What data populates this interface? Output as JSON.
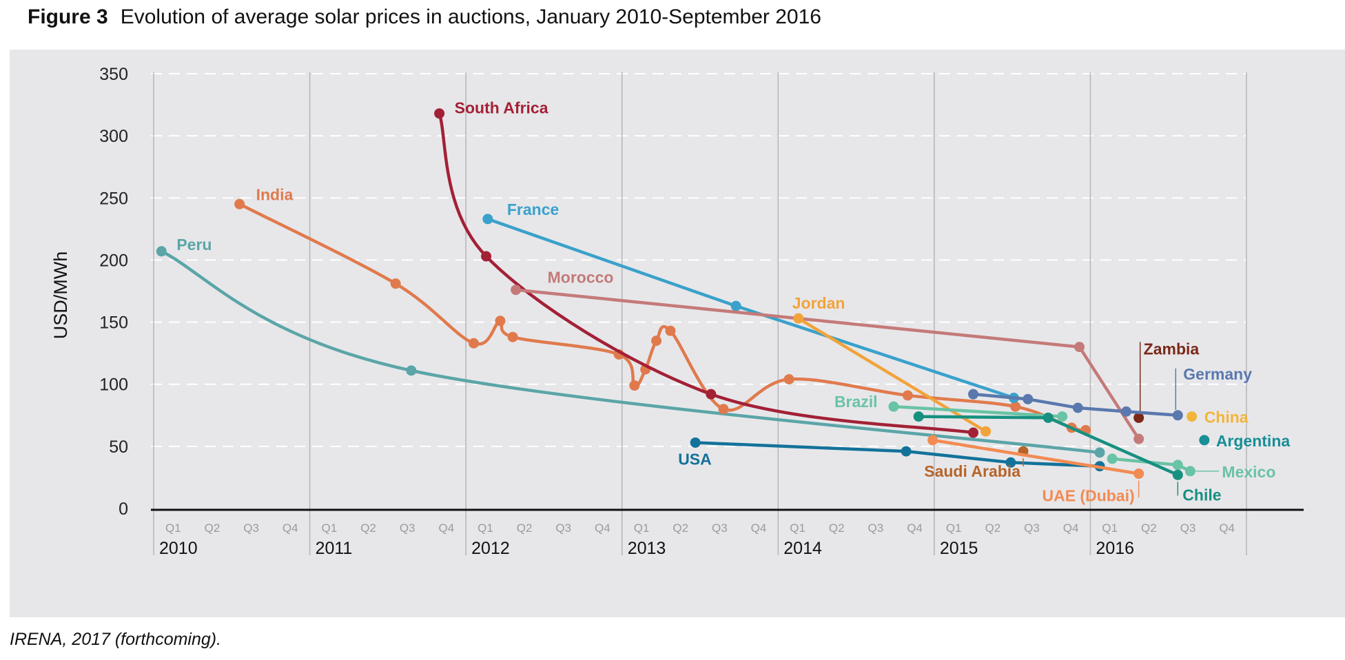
{
  "figure": {
    "number": "Figure 3",
    "title": "Evolution of average solar prices in auctions, January 2010-September 2016",
    "source": "IRENA, 2017 (forthcoming)."
  },
  "chart_data": {
    "type": "line",
    "title": "Evolution of average solar prices in auctions, January 2010-September 2016",
    "xlabel": "",
    "ylabel": "USD/MWh",
    "ylim": [
      0,
      350
    ],
    "yticks": [
      0,
      50,
      100,
      150,
      200,
      250,
      300,
      350
    ],
    "x_unit": "years since Jan 2010",
    "xlim": [
      0,
      7
    ],
    "years": [
      "2010",
      "2011",
      "2012",
      "2013",
      "2014",
      "2015",
      "2016"
    ],
    "quarters": [
      "Q1",
      "Q2",
      "Q3",
      "Q4"
    ],
    "grid": true,
    "series": [
      {
        "name": "Peru",
        "color": "#5ba5a7",
        "smooth": true,
        "label_at": "first",
        "points": [
          [
            0.05,
            207
          ],
          [
            1.65,
            111
          ],
          [
            6.06,
            45
          ]
        ]
      },
      {
        "name": "India",
        "color": "#e07a4c",
        "smooth": true,
        "label_at": "first",
        "points": [
          [
            0.55,
            245
          ],
          [
            1.55,
            181
          ],
          [
            2.05,
            133
          ],
          [
            2.22,
            151
          ],
          [
            2.3,
            138
          ],
          [
            2.98,
            124
          ],
          [
            3.08,
            99
          ],
          [
            3.15,
            112
          ],
          [
            3.22,
            135
          ],
          [
            3.31,
            143
          ],
          [
            3.65,
            80
          ],
          [
            4.07,
            104
          ],
          [
            4.83,
            91
          ],
          [
            5.52,
            82
          ],
          [
            5.88,
            65
          ],
          [
            5.97,
            63
          ]
        ]
      },
      {
        "name": "South Africa",
        "color": "#a32136",
        "smooth": true,
        "label_at": "first",
        "points": [
          [
            1.83,
            318
          ],
          [
            2.13,
            203
          ],
          [
            3.57,
            92
          ],
          [
            5.25,
            61
          ]
        ]
      },
      {
        "name": "France",
        "color": "#3aa1cb",
        "smooth": false,
        "label_at": "first",
        "points": [
          [
            2.14,
            233
          ],
          [
            3.73,
            163
          ],
          [
            5.51,
            89
          ]
        ]
      },
      {
        "name": "Morocco",
        "color": "#c47a79",
        "smooth": false,
        "label_at": "first",
        "points": [
          [
            2.32,
            176
          ],
          [
            5.93,
            130
          ],
          [
            6.31,
            56
          ]
        ]
      },
      {
        "name": "Jordan",
        "color": "#f2a33a",
        "smooth": false,
        "label_at": "first",
        "points": [
          [
            4.13,
            153
          ],
          [
            5.33,
            62
          ]
        ]
      },
      {
        "name": "Brazil",
        "color": "#69c3a5",
        "smooth": false,
        "label_at": "first",
        "points": [
          [
            4.74,
            82
          ],
          [
            5.82,
            74
          ]
        ]
      },
      {
        "name": "USA",
        "color": "#13729a",
        "smooth": false,
        "label_at": "first",
        "points": [
          [
            3.47,
            53
          ],
          [
            4.82,
            46
          ],
          [
            5.49,
            37
          ],
          [
            6.06,
            34
          ]
        ]
      },
      {
        "name": "Saudi Arabia",
        "color": "#b76428",
        "smooth": false,
        "label_at": "last",
        "points": [
          [
            5.57,
            46
          ]
        ]
      },
      {
        "name": "UAE (Dubai)",
        "color": "#f28b53",
        "smooth": false,
        "label_at": "last",
        "points": [
          [
            4.99,
            55
          ],
          [
            6.31,
            28
          ]
        ]
      },
      {
        "name": "Zambia",
        "color": "#7a2818",
        "smooth": false,
        "label_at": "last",
        "points": [
          [
            6.31,
            73
          ]
        ]
      },
      {
        "name": "Germany",
        "color": "#5a78ad",
        "smooth": false,
        "label_at": "last",
        "points": [
          [
            5.25,
            92
          ],
          [
            5.6,
            88
          ],
          [
            5.92,
            81
          ],
          [
            6.23,
            78
          ],
          [
            6.56,
            75
          ]
        ]
      },
      {
        "name": "China",
        "color": "#f2b43a",
        "smooth": false,
        "label_at": "last",
        "points": [
          [
            6.65,
            74
          ]
        ]
      },
      {
        "name": "Argentina",
        "color": "#188e96",
        "smooth": false,
        "label_at": "last",
        "points": [
          [
            6.73,
            55
          ]
        ]
      },
      {
        "name": "Mexico",
        "color": "#69c3a5",
        "smooth": false,
        "label_at": "last",
        "points": [
          [
            6.14,
            40
          ],
          [
            6.56,
            35
          ],
          [
            6.64,
            30
          ]
        ]
      },
      {
        "name": "Chile",
        "color": "#179080",
        "smooth": false,
        "label_at": "last",
        "points": [
          [
            4.9,
            74
          ],
          [
            5.73,
            73
          ],
          [
            6.56,
            27
          ]
        ]
      }
    ]
  }
}
